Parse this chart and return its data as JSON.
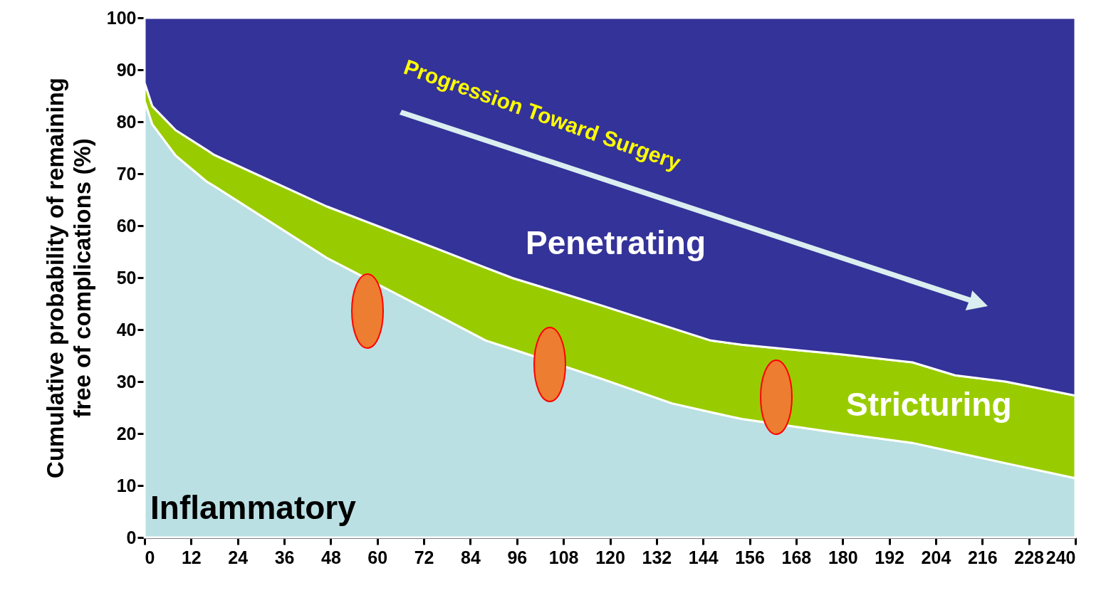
{
  "chart_data": {
    "type": "area",
    "stacked": true,
    "x": [
      0,
      2,
      8,
      16,
      18,
      47,
      76,
      88,
      95,
      112,
      118,
      136,
      146,
      154,
      180,
      198,
      209,
      222,
      240
    ],
    "series": [
      {
        "name": "Inflammatory",
        "color": "#bae0e3",
        "values": [
          84,
          79.5,
          73.5,
          68.5,
          67.6,
          53.8,
          42.6,
          37.9,
          36.2,
          32.0,
          30.5,
          25.8,
          24.1,
          22.8,
          20.0,
          18.2,
          16.4,
          14.3,
          11.4
        ]
      },
      {
        "name": "Stricturing",
        "color": "#99cc00",
        "values": [
          3.5,
          3.5,
          4.9,
          6.1,
          6.0,
          9.9,
          12.8,
          14.0,
          13.7,
          14.0,
          14.1,
          14.5,
          13.8,
          14.3,
          15.2,
          15.5,
          14.8,
          15.7,
          15.9
        ]
      },
      {
        "name": "Penetrating",
        "color": "#343399",
        "values": [
          12.5,
          17,
          21.6,
          25.4,
          26.4,
          36.3,
          44.6,
          48.1,
          50.1,
          54.0,
          55.4,
          59.7,
          62.1,
          62.9,
          64.8,
          66.3,
          68.8,
          70,
          72.7
        ]
      }
    ],
    "xlim": [
      0,
      240
    ],
    "xticks": [
      0,
      12,
      24,
      36,
      48,
      60,
      72,
      84,
      96,
      108,
      120,
      132,
      144,
      156,
      168,
      180,
      192,
      204,
      216,
      228,
      240
    ],
    "ylim": [
      0,
      100
    ],
    "yticks": [
      0,
      10,
      20,
      30,
      40,
      50,
      60,
      70,
      80,
      90,
      100
    ],
    "ylabel": "Cumulative probability of remaining\nfree of complications (%)",
    "annotations": [
      "Progression Toward Surgery"
    ]
  }
}
